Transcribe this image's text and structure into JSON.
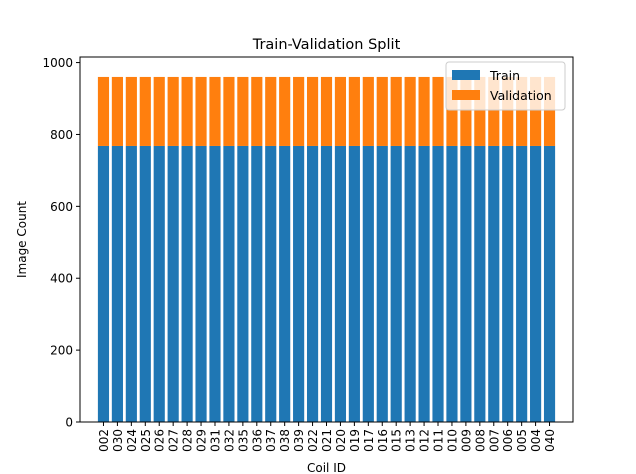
{
  "chart_data": {
    "type": "bar",
    "stacked": true,
    "title": "Train-Validation Split",
    "xlabel": "Coil ID",
    "ylabel": "Image Count",
    "ylim": [
      0,
      1000
    ],
    "yticks": [
      0,
      200,
      400,
      600,
      800,
      1000
    ],
    "grid": false,
    "legend_position": "top-right",
    "categories": [
      "002",
      "030",
      "024",
      "025",
      "026",
      "027",
      "028",
      "029",
      "031",
      "032",
      "035",
      "036",
      "037",
      "038",
      "039",
      "022",
      "021",
      "020",
      "019",
      "017",
      "016",
      "015",
      "013",
      "012",
      "011",
      "010",
      "009",
      "008",
      "007",
      "006",
      "005",
      "004",
      "040"
    ],
    "series": [
      {
        "name": "Train",
        "color": "#1f77b4",
        "values": [
          768,
          768,
          768,
          768,
          768,
          768,
          768,
          768,
          768,
          768,
          768,
          768,
          768,
          768,
          768,
          768,
          768,
          768,
          768,
          768,
          768,
          768,
          768,
          768,
          768,
          768,
          768,
          768,
          768,
          768,
          768,
          768,
          768
        ]
      },
      {
        "name": "Validation",
        "color": "#ff7f0e",
        "values": [
          192,
          192,
          192,
          192,
          192,
          192,
          192,
          192,
          192,
          192,
          192,
          192,
          192,
          192,
          192,
          192,
          192,
          192,
          192,
          192,
          192,
          192,
          192,
          192,
          192,
          192,
          192,
          192,
          192,
          192,
          192,
          192,
          192
        ]
      }
    ]
  }
}
